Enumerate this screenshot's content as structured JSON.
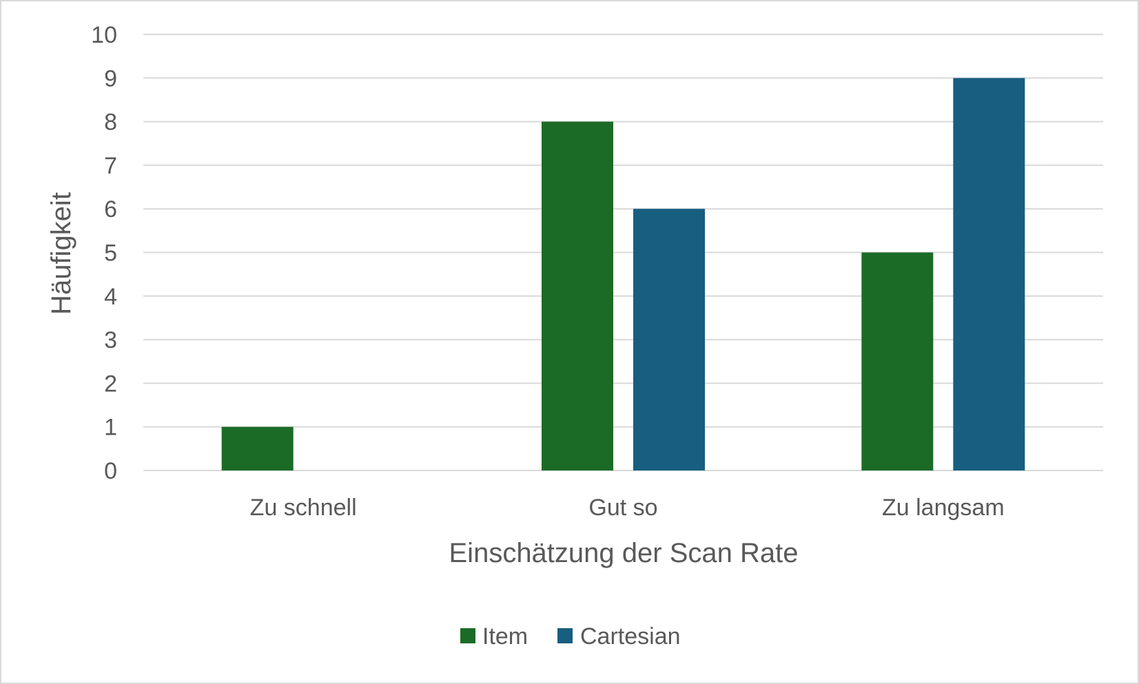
{
  "chart_data": {
    "type": "bar",
    "categories": [
      "Zu schnell",
      "Gut so",
      "Zu langsam"
    ],
    "series": [
      {
        "name": "Item",
        "values": [
          1,
          8,
          5
        ],
        "color": "#1b6b27"
      },
      {
        "name": "Cartesian",
        "values": [
          null,
          6,
          9
        ],
        "color": "#175e80"
      }
    ],
    "xlabel": "Einschätzung der Scan Rate",
    "ylabel": "Häufigkeit",
    "ylim": [
      0,
      10
    ],
    "yticks": [
      "0",
      "1",
      "2",
      "3",
      "4",
      "5",
      "6",
      "7",
      "8",
      "9",
      "10"
    ],
    "grid": true,
    "gridline_color": "#d9d9d9",
    "legend_position": "bottom"
  }
}
